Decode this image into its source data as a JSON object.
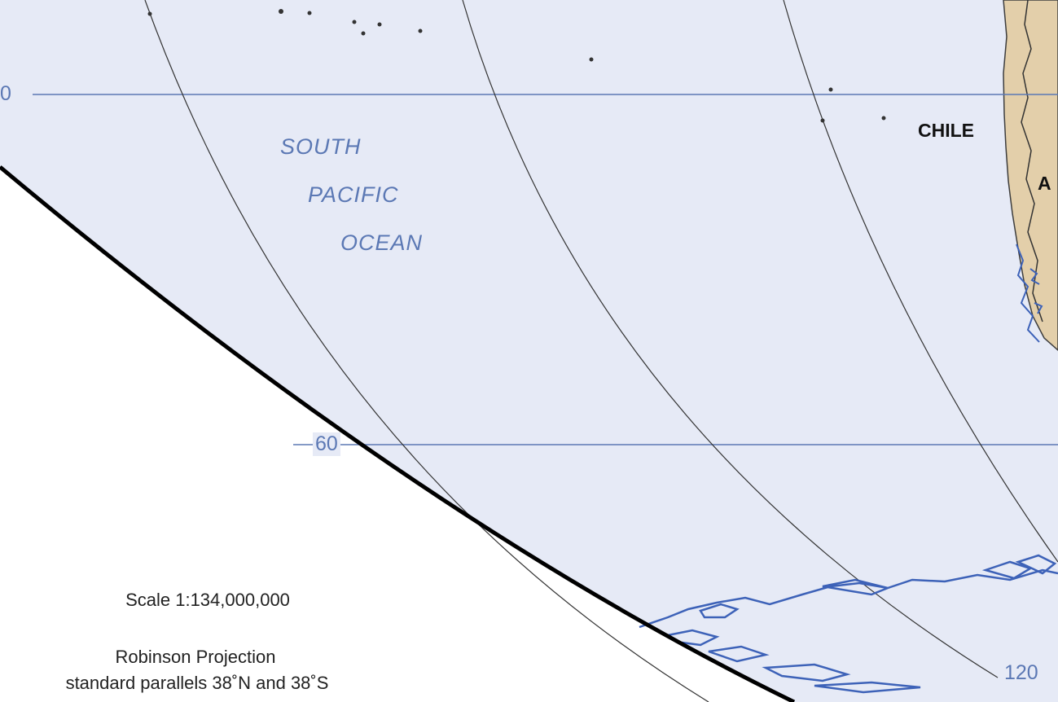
{
  "map": {
    "ocean_label": {
      "line1": "SOUTH",
      "line2": "PACIFIC",
      "line3": "OCEAN"
    },
    "country_labels": {
      "chile": "CHILE",
      "argentina_partial": "A"
    },
    "graticule_labels": {
      "lat_top_partial": "0",
      "lat_60": "60",
      "lon_120": "120"
    },
    "scale": "Scale 1:134,000,000",
    "projection": {
      "line1": "Robinson Projection",
      "line2": "standard parallels 38˚N and 38˚S"
    },
    "colors": {
      "ocean": "#e6eaf6",
      "land": "#e3cfaa",
      "coast": "#3d62b8",
      "grid_parallel": "#5b78b4",
      "grid_meridian": "#333333",
      "boundary": "#000000"
    }
  }
}
